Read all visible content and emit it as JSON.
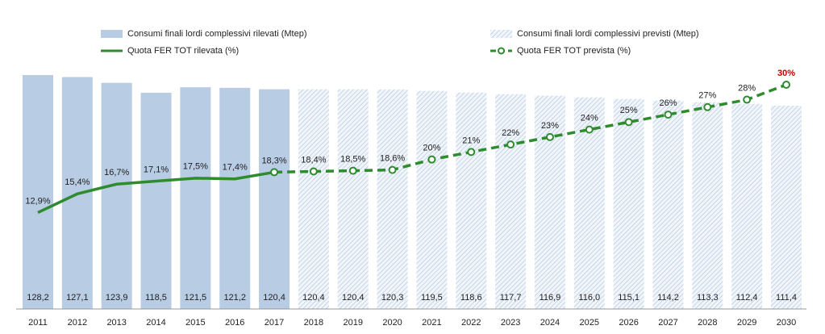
{
  "chart_data": {
    "type": "bar-line",
    "categories": [
      "2011",
      "2012",
      "2013",
      "2014",
      "2015",
      "2016",
      "2017",
      "2018",
      "2019",
      "2020",
      "2021",
      "2022",
      "2023",
      "2024",
      "2025",
      "2026",
      "2027",
      "2028",
      "2029",
      "2030"
    ],
    "series": [
      {
        "name": "Consumi finali lordi complessivi rilevati (Mtep)",
        "kind": "bar",
        "color": "#b8cce4",
        "values": [
          128.2,
          127.1,
          123.9,
          118.5,
          121.5,
          121.2,
          120.4,
          null,
          null,
          null,
          null,
          null,
          null,
          null,
          null,
          null,
          null,
          null,
          null,
          null
        ],
        "value_labels": [
          "128,2",
          "127,1",
          "123,9",
          "118,5",
          "121,5",
          "121,2",
          "120,4",
          null,
          null,
          null,
          null,
          null,
          null,
          null,
          null,
          null,
          null,
          null,
          null,
          null
        ]
      },
      {
        "name": "Consumi finali lordi complessivi previsti (Mtep)",
        "kind": "bar",
        "color": "#b8cce4",
        "hatched": true,
        "values": [
          null,
          null,
          null,
          null,
          null,
          null,
          null,
          120.4,
          120.4,
          120.3,
          119.5,
          118.6,
          117.7,
          116.9,
          116.0,
          115.1,
          114.2,
          113.3,
          112.4,
          111.4
        ],
        "value_labels": [
          null,
          null,
          null,
          null,
          null,
          null,
          null,
          "120,4",
          "120,4",
          "120,3",
          "119,5",
          "118,6",
          "117,7",
          "116,9",
          "116,0",
          "115,1",
          "114,2",
          "113,3",
          "112,4",
          "111,4"
        ]
      },
      {
        "name": "Quota FER TOT rilevata (%)",
        "kind": "line",
        "color": "#2e8b2e",
        "values": [
          12.9,
          15.4,
          16.7,
          17.1,
          17.5,
          17.4,
          18.3,
          null,
          null,
          null,
          null,
          null,
          null,
          null,
          null,
          null,
          null,
          null,
          null,
          null
        ],
        "value_labels": [
          "12,9%",
          "15,4%",
          "16,7%",
          "17,1%",
          "17,5%",
          "17,4%",
          "18,3%",
          null,
          null,
          null,
          null,
          null,
          null,
          null,
          null,
          null,
          null,
          null,
          null,
          null
        ]
      },
      {
        "name": "Quota FER TOT prevista (%)",
        "kind": "line",
        "color": "#2e8b2e",
        "dashed": true,
        "markers": true,
        "values": [
          null,
          null,
          null,
          null,
          null,
          null,
          18.3,
          18.4,
          18.5,
          18.6,
          20,
          21,
          22,
          23,
          24,
          25,
          26,
          27,
          28,
          30
        ],
        "value_labels": [
          null,
          null,
          null,
          null,
          null,
          null,
          null,
          "18,4%",
          "18,5%",
          "18,6%",
          "20%",
          "21%",
          "22%",
          "23%",
          "24%",
          "25%",
          "26%",
          "27%",
          "28%",
          "30%"
        ]
      }
    ]
  }
}
